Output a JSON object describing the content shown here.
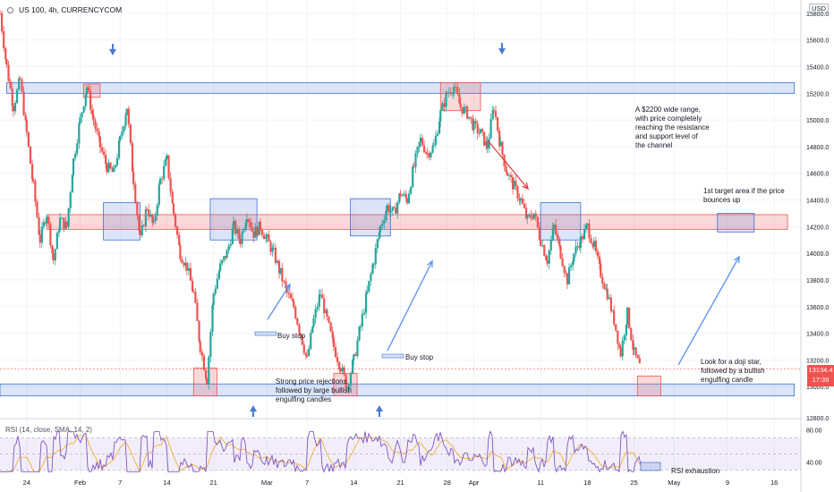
{
  "header": {
    "title": "US 100, 4h, CURRENCYCOM"
  },
  "currency_label": "USD",
  "current_price": {
    "value": "13134.4",
    "countdown": "17:39"
  },
  "rsi_title": "RSI (14, close, SMA, 14, 2)",
  "rsi_level_labels": [
    "80.00",
    "40.00"
  ],
  "annotations": {
    "range": "A $2200 wide range,\nwith price completely\nreaching the resistance\nand support level of\nthe channel",
    "target": "1st target area if the price\nbounces up",
    "doji": "Look for a doji star,\nfollowed by a bullish\nengulfing candle",
    "rejection": "Strong price rejections,\nfollowed by large bullish\nengulfing candles",
    "buy_stop_1": "Buy stop",
    "buy_stop_2": "Buy stop",
    "rsi_exhaustion": "RSI exhaustion"
  },
  "colors": {
    "up": "#26a69a",
    "down": "#ef5350",
    "zone_blue": "#3d6fd6",
    "zone_red": "#ef5350",
    "arrow_blue": "#5b8ff0",
    "arrow_red": "#e03c3c",
    "rsi_line": "#7e57c2",
    "rsi_ma": "#f5a623"
  },
  "chart_data": {
    "type": "candlestick",
    "symbol": "US 100",
    "timeframe": "4h",
    "y_ticks": [
      13000,
      13200,
      13400,
      13600,
      13800,
      14000,
      14200,
      14400,
      14600,
      14800,
      15000,
      15200,
      15400,
      15600,
      15800
    ],
    "y_tick_labels": [
      "13000.0",
      "13200.0",
      "13400.0",
      "13600.0",
      "13800.0",
      "14000.0",
      "14200.0",
      "14400.0",
      "14600.0",
      "14800.0",
      "15000.0",
      "15200.0",
      "15400.0",
      "15600.0",
      "15800.0"
    ],
    "ylim": [
      12800,
      15900
    ],
    "extra_y_label": "12800.0",
    "x_ticks": [
      {
        "label": "24",
        "day": 0
      },
      {
        "label": "Feb",
        "day": 8
      },
      {
        "label": "7",
        "day": 14
      },
      {
        "label": "14",
        "day": 21
      },
      {
        "label": "21",
        "day": 28
      },
      {
        "label": "Mar",
        "day": 36
      },
      {
        "label": "7",
        "day": 42
      },
      {
        "label": "14",
        "day": 49
      },
      {
        "label": "21",
        "day": 56
      },
      {
        "label": "28",
        "day": 63
      },
      {
        "label": "Apr",
        "day": 67
      },
      {
        "label": "11",
        "day": 77
      },
      {
        "label": "18",
        "day": 84
      },
      {
        "label": "25",
        "day": 91
      },
      {
        "label": "May",
        "day": 97
      },
      {
        "label": "9",
        "day": 105
      },
      {
        "label": "16",
        "day": 112
      }
    ],
    "xlim_days": [
      -4,
      116
    ],
    "price_path": [
      [
        -4,
        15800
      ],
      [
        -3,
        15400
      ],
      [
        -2,
        15100
      ],
      [
        -1,
        15300
      ],
      [
        0,
        14900
      ],
      [
        1,
        14500
      ],
      [
        2,
        14100
      ],
      [
        3,
        14300
      ],
      [
        4,
        13950
      ],
      [
        5,
        14250
      ],
      [
        6,
        14200
      ],
      [
        7,
        14700
      ],
      [
        8,
        15000
      ],
      [
        9,
        15250
      ],
      [
        10,
        15000
      ],
      [
        11,
        14800
      ],
      [
        12,
        14650
      ],
      [
        13,
        14600
      ],
      [
        14,
        14850
      ],
      [
        15,
        15100
      ],
      [
        16,
        14550
      ],
      [
        17,
        14100
      ],
      [
        18,
        14350
      ],
      [
        19,
        14200
      ],
      [
        20,
        14550
      ],
      [
        21,
        14700
      ],
      [
        22,
        14300
      ],
      [
        23,
        14000
      ],
      [
        24,
        13900
      ],
      [
        25,
        13700
      ],
      [
        26,
        13300
      ],
      [
        27,
        13050
      ],
      [
        28,
        13700
      ],
      [
        29,
        13900
      ],
      [
        30,
        14000
      ],
      [
        31,
        14200
      ],
      [
        32,
        14100
      ],
      [
        33,
        14300
      ],
      [
        34,
        14150
      ],
      [
        35,
        14200
      ],
      [
        36,
        14100
      ],
      [
        37,
        14000
      ],
      [
        38,
        13850
      ],
      [
        39,
        13700
      ],
      [
        40,
        13600
      ],
      [
        41,
        13400
      ],
      [
        42,
        13200
      ],
      [
        43,
        13500
      ],
      [
        44,
        13700
      ],
      [
        45,
        13500
      ],
      [
        46,
        13300
      ],
      [
        47,
        13150
      ],
      [
        48,
        13000
      ],
      [
        49,
        13200
      ],
      [
        50,
        13450
      ],
      [
        51,
        13700
      ],
      [
        52,
        13950
      ],
      [
        53,
        14200
      ],
      [
        54,
        14350
      ],
      [
        55,
        14300
      ],
      [
        56,
        14450
      ],
      [
        57,
        14400
      ],
      [
        58,
        14650
      ],
      [
        59,
        14850
      ],
      [
        60,
        14750
      ],
      [
        61,
        14800
      ],
      [
        62,
        15050
      ],
      [
        63,
        15200
      ],
      [
        64,
        15250
      ],
      [
        65,
        15100
      ],
      [
        66,
        15050
      ],
      [
        67,
        14950
      ],
      [
        68,
        14900
      ],
      [
        69,
        14800
      ],
      [
        70,
        15100
      ],
      [
        71,
        14800
      ],
      [
        72,
        14600
      ],
      [
        73,
        14500
      ],
      [
        74,
        14400
      ],
      [
        75,
        14250
      ],
      [
        76,
        14300
      ],
      [
        77,
        14100
      ],
      [
        78,
        13950
      ],
      [
        79,
        14200
      ],
      [
        80,
        14000
      ],
      [
        81,
        13800
      ],
      [
        82,
        14000
      ],
      [
        83,
        14100
      ],
      [
        84,
        14200
      ],
      [
        85,
        14050
      ],
      [
        86,
        13850
      ],
      [
        87,
        13700
      ],
      [
        88,
        13500
      ],
      [
        89,
        13250
      ],
      [
        90,
        13550
      ],
      [
        91,
        13250
      ],
      [
        92,
        13134
      ]
    ],
    "zones": [
      {
        "name": "resistance",
        "kind": "blue",
        "day0": -3,
        "day1": 115,
        "y0": 15200,
        "y1": 15280
      },
      {
        "name": "support",
        "kind": "blue",
        "day0": -4,
        "day1": 115,
        "y0": 12930,
        "y1": 13020
      },
      {
        "name": "mid-channel",
        "kind": "red",
        "day0": 3,
        "day1": 114,
        "y0": 14180,
        "y1": 14290
      },
      {
        "name": "top-left",
        "kind": "red",
        "day0": 8.5,
        "day1": 11,
        "y0": 15170,
        "y1": 15270
      },
      {
        "name": "top-right",
        "kind": "red",
        "day0": 62,
        "day1": 68,
        "y0": 15070,
        "y1": 15280
      },
      {
        "name": "bot-1",
        "kind": "red",
        "day0": 25,
        "day1": 28.5,
        "y0": 12930,
        "y1": 13140
      },
      {
        "name": "bot-2",
        "kind": "red",
        "day0": 46,
        "day1": 49.5,
        "y0": 12930,
        "y1": 13100
      },
      {
        "name": "bot-3",
        "kind": "red",
        "day0": 91.5,
        "day1": 95,
        "y0": 12930,
        "y1": 13080
      },
      {
        "name": "mid-1",
        "kind": "blue",
        "day0": 11.5,
        "day1": 17,
        "y0": 14100,
        "y1": 14380
      },
      {
        "name": "mid-2",
        "kind": "blue",
        "day0": 27.5,
        "day1": 34.5,
        "y0": 14100,
        "y1": 14410
      },
      {
        "name": "mid-3",
        "kind": "blue",
        "day0": 48.5,
        "day1": 54.5,
        "y0": 14130,
        "y1": 14410
      },
      {
        "name": "mid-4",
        "kind": "blue",
        "day0": 77,
        "day1": 83,
        "y0": 14100,
        "y1": 14380
      },
      {
        "name": "target",
        "kind": "blue",
        "day0": 103.5,
        "day1": 109,
        "y0": 14160,
        "y1": 14300
      }
    ],
    "rsi": {
      "levels": [
        70,
        50,
        30
      ],
      "labels_shown": [
        80,
        40
      ],
      "range": [
        25,
        85
      ]
    }
  }
}
